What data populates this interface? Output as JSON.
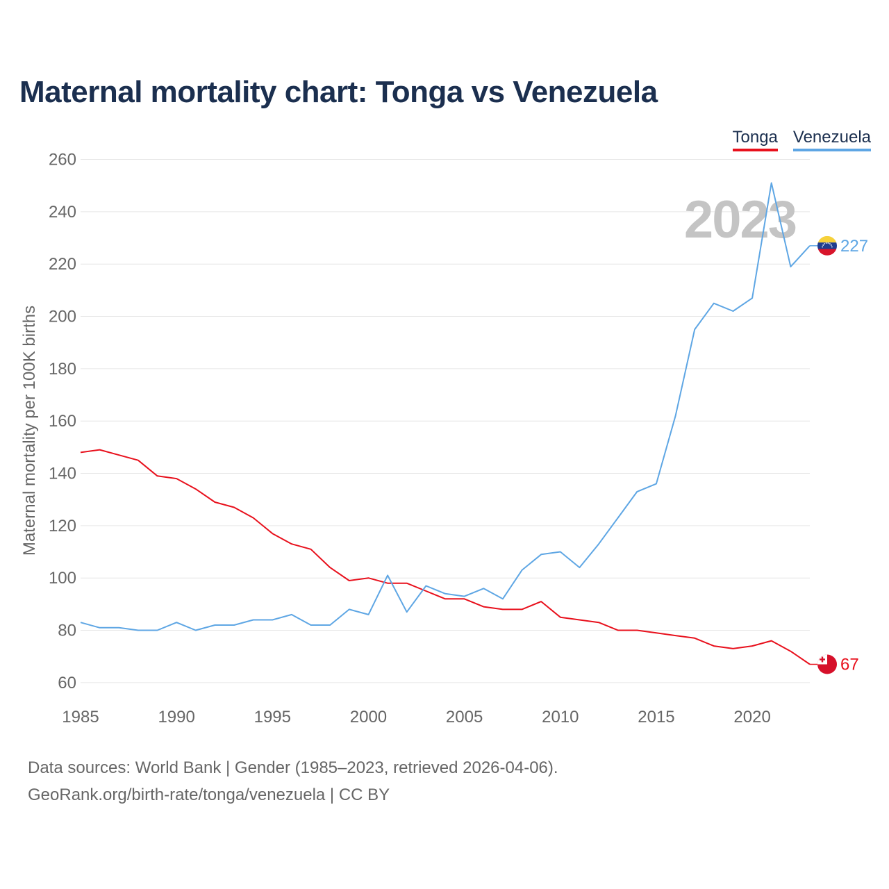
{
  "title": "Maternal mortality chart: Tonga vs Venezuela",
  "legend": [
    {
      "name": "Tonga",
      "color": "#e8101c"
    },
    {
      "name": "Venezuela",
      "color": "#5ea6e4"
    }
  ],
  "year_watermark": "2023",
  "footer": {
    "line1": "Data sources: World Bank | Gender (1985–2023, retrieved 2026-04-06).",
    "line2": "GeoRank.org/birth-rate/tonga/venezuela | CC BY"
  },
  "chart_data": {
    "type": "line",
    "title": "Maternal mortality chart: Tonga vs Venezuela",
    "xlabel": "",
    "ylabel": "Maternal mortality per 100K births",
    "xlim": [
      1985,
      2023
    ],
    "ylim": [
      52,
      262
    ],
    "x_ticks": [
      1985,
      1990,
      1995,
      2000,
      2005,
      2010,
      2015,
      2020
    ],
    "y_ticks": [
      60,
      80,
      100,
      120,
      140,
      160,
      180,
      200,
      220,
      240,
      260
    ],
    "x": [
      1985,
      1986,
      1987,
      1988,
      1989,
      1990,
      1991,
      1992,
      1993,
      1994,
      1995,
      1996,
      1997,
      1998,
      1999,
      2000,
      2001,
      2002,
      2003,
      2004,
      2005,
      2006,
      2007,
      2008,
      2009,
      2010,
      2011,
      2012,
      2013,
      2014,
      2015,
      2016,
      2017,
      2018,
      2019,
      2020,
      2021,
      2022,
      2023
    ],
    "series": [
      {
        "name": "Tonga",
        "color": "#e8101c",
        "end_label": "67",
        "values": [
          148,
          149,
          147,
          145,
          139,
          138,
          134,
          129,
          127,
          123,
          117,
          113,
          111,
          104,
          99,
          100,
          98,
          98,
          95,
          92,
          92,
          89,
          88,
          88,
          91,
          85,
          84,
          83,
          80,
          80,
          79,
          78,
          77,
          74,
          73,
          74,
          76,
          72,
          67
        ]
      },
      {
        "name": "Venezuela",
        "color": "#5ea6e4",
        "end_label": "227",
        "values": [
          83,
          81,
          81,
          80,
          80,
          83,
          80,
          82,
          82,
          84,
          84,
          86,
          82,
          82,
          88,
          86,
          101,
          87,
          97,
          94,
          93,
          96,
          92,
          103,
          109,
          110,
          104,
          113,
          123,
          133,
          136,
          162,
          195,
          205,
          202,
          207,
          251,
          219,
          227
        ]
      }
    ]
  }
}
